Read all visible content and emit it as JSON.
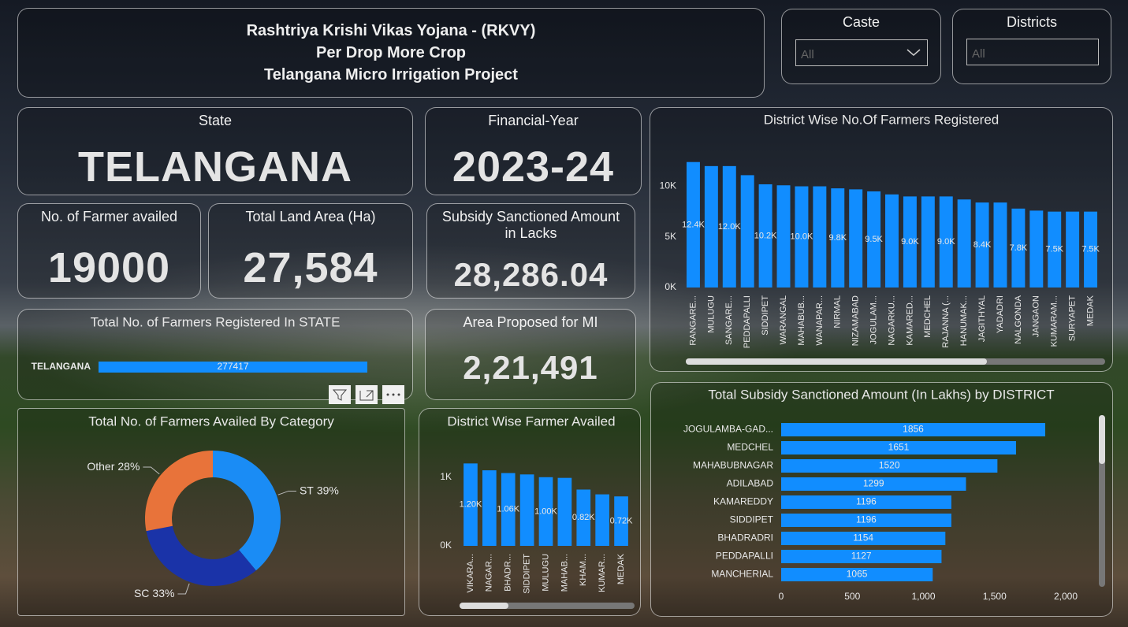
{
  "header": {
    "lines": [
      "Rashtriya Krishi Vikas Yojana - (RKVY)",
      "Per Drop More Crop",
      "Telangana Micro Irrigation Project"
    ]
  },
  "slicers": [
    {
      "title": "Caste",
      "value": "All"
    },
    {
      "title": "Districts",
      "value": "All"
    }
  ],
  "cards": [
    {
      "title": "State",
      "value": "TELANGANA"
    },
    {
      "title": "Financial-Year",
      "value": "2023-24"
    },
    {
      "title": "No. of Farmer availed",
      "value": "19000"
    },
    {
      "title": "Total Land Area (Ha)",
      "value": "27,584"
    },
    {
      "title": "Subsidy Sanctioned Amount in Lacks",
      "value": "28,286.04"
    },
    {
      "title": "Area Proposed for MI",
      "value": "2,21,491"
    }
  ],
  "chart_data": [
    {
      "type": "bar",
      "title": "District Wise No.Of Farmers Registered",
      "categories": [
        "RANGARE...",
        "MULUGU",
        "SANGARE...",
        "PEDDAPALLI",
        "SIDDIPET",
        "WARANGAL",
        "MAHABUB...",
        "WANAPAR...",
        "NIRMAL",
        "NIZAMABAD",
        "JOGULAM...",
        "NAGARKU...",
        "KAMARED...",
        "MEDCHEL",
        "RAJANNA (...",
        "HANUMAK...",
        "JAGITHYAL",
        "YADADRI",
        "NALGONDA",
        "JANGAON",
        "KUMARAM...",
        "SURYAPET",
        "MEDAK"
      ],
      "values": [
        12400,
        12000,
        12000,
        11100,
        10200,
        10100,
        10000,
        10000,
        9800,
        9700,
        9500,
        9200,
        9000,
        9000,
        9000,
        8700,
        8400,
        8400,
        7800,
        7600,
        7500,
        7500,
        7500
      ],
      "value_labels": [
        "12.4K",
        null,
        "12.0K",
        null,
        "10.2K",
        null,
        "10.0K",
        null,
        "9.8K",
        null,
        "9.5K",
        null,
        "9.0K",
        null,
        "9.0K",
        null,
        "8.4K",
        null,
        "7.8K",
        null,
        "7.5K",
        null,
        "7.5K"
      ],
      "color": "#118dff",
      "ylim": [
        0,
        13000
      ],
      "yticks": [
        {
          "value": 0,
          "label": "0K"
        },
        {
          "value": 5000,
          "label": "5K"
        },
        {
          "value": 10000,
          "label": "10K"
        }
      ]
    },
    {
      "type": "hbar",
      "title": "Total No. of Farmers Registered In STATE",
      "categories": [
        "TELANGANA"
      ],
      "values": [
        277417
      ],
      "color": "#118dff"
    },
    {
      "type": "donut",
      "title": "Total No. of Farmers Availed By Category",
      "categories": [
        "ST",
        "SC",
        "Other"
      ],
      "values": [
        39,
        33,
        28
      ],
      "value_labels": [
        "39%",
        "33%",
        "28%"
      ],
      "colors": [
        "#1a8cf5",
        "#1a33a8",
        "#e8733a"
      ]
    },
    {
      "type": "bar",
      "title": "District Wise Farmer Availed",
      "categories": [
        "VIKARA...",
        "NAGAR...",
        "BHADR...",
        "SIDDIPET",
        "MULUGU",
        "MAHAB...",
        "KHAM...",
        "KUMAR...",
        "MEDAK"
      ],
      "values": [
        1200,
        1100,
        1060,
        1040,
        1000,
        990,
        820,
        750,
        720
      ],
      "value_labels": [
        "1.20K",
        null,
        "1.06K",
        null,
        "1.00K",
        null,
        "0.82K",
        null,
        "0.72K"
      ],
      "color": "#118dff",
      "ylim": [
        0,
        1250
      ],
      "yticks": [
        {
          "value": 0,
          "label": "0K"
        },
        {
          "value": 1000,
          "label": "1K"
        }
      ]
    },
    {
      "type": "hbar",
      "title": "Total Subsidy Sanctioned Amount (In Lakhs) by DISTRICT",
      "categories": [
        "JOGULAMBA-GAD...",
        "MEDCHEL",
        "MAHABUBNAGAR",
        "ADILABAD",
        "KAMAREDDY",
        "SIDDIPET",
        "BHADRADRI",
        "PEDDAPALLI",
        "MANCHERIAL"
      ],
      "values": [
        1856,
        1651,
        1520,
        1299,
        1196,
        1196,
        1154,
        1127,
        1065
      ],
      "color": "#118dff",
      "xlim": [
        0,
        2000
      ],
      "xticks": [
        0,
        500,
        {
          "value": 1000,
          "label": "1,000"
        },
        {
          "value": 1500,
          "label": "1,500"
        },
        {
          "value": 2000,
          "label": "2,000"
        }
      ]
    }
  ]
}
